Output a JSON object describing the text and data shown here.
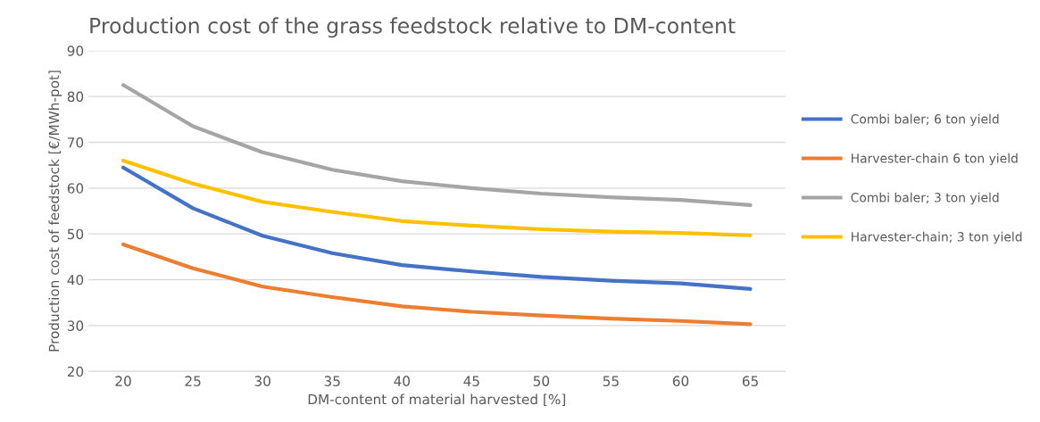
{
  "chart_data": {
    "type": "line",
    "title": "Production cost of the grass feedstock relative to DM-content",
    "xlabel": "DM-content of material harvested [%]",
    "ylabel": "Production cost of feedstock [€/MWh-pot]",
    "categories": [
      "20",
      "25",
      "30",
      "35",
      "40",
      "45",
      "50",
      "55",
      "60",
      "65"
    ],
    "series": [
      {
        "name": "Combi baler; 6 ton yield",
        "color": "#4472c4",
        "values": [
          64.5,
          55.6,
          49.6,
          45.8,
          43.2,
          41.8,
          40.6,
          39.8,
          39.2,
          38
        ]
      },
      {
        "name": "Harvester-chain 6 ton yield",
        "color": "#ed7d31",
        "values": [
          47.7,
          42.5,
          38.5,
          36.2,
          34.2,
          33,
          32.2,
          31.5,
          31,
          30.3
        ]
      },
      {
        "name": "Combi baler; 3 ton yield",
        "color": "#a5a5a5",
        "values": [
          82.5,
          73.5,
          67.8,
          64,
          61.5,
          60,
          58.8,
          58,
          57.4,
          56.3
        ]
      },
      {
        "name": "Harvester-chain; 3 ton yield",
        "color": "#ffc000",
        "values": [
          66,
          61,
          57,
          54.8,
          52.8,
          51.8,
          51,
          50.5,
          50.2,
          49.7
        ]
      }
    ],
    "ylim": [
      20,
      90
    ],
    "yticks": [
      20,
      30,
      40,
      50,
      60,
      70,
      80,
      90
    ],
    "grid": "y",
    "legend": "right",
    "marker": "none",
    "line_style": "solid"
  }
}
